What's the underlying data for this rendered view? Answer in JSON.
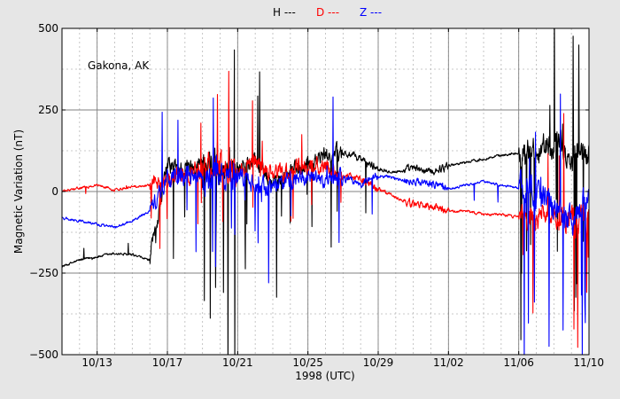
{
  "chart_data": {
    "type": "line",
    "xlabel": "1998 (UTC)",
    "ylabel": "Magnetic Variation (nT)",
    "annotation": "Gakona, AK",
    "ylim": [
      -500,
      500
    ],
    "xlim": [
      "1998-10-11",
      "1998-11-10"
    ],
    "yticks": [
      -500,
      -250,
      0,
      250,
      500
    ],
    "ytick_labels": [
      "−500",
      "−250",
      "0",
      "250",
      "500"
    ],
    "xticks": [
      "1998-10-13",
      "1998-10-17",
      "1998-10-21",
      "1998-10-25",
      "1998-10-29",
      "1998-11-02",
      "1998-11-06",
      "1998-11-10"
    ],
    "xtick_labels": [
      "10/13",
      "10/17",
      "10/21",
      "10/25",
      "10/29",
      "11/02",
      "11/06",
      "11/10"
    ],
    "grid": true,
    "legend_position": "top-center",
    "series": [
      {
        "name": "H ---",
        "color": "#000000",
        "x": [
          "1998-10-11",
          "1998-10-12",
          "1998-10-13",
          "1998-10-14",
          "1998-10-15",
          "1998-10-16",
          "1998-10-17",
          "1998-10-18",
          "1998-10-19",
          "1998-10-20",
          "1998-10-21",
          "1998-10-22",
          "1998-10-23",
          "1998-10-24",
          "1998-10-25",
          "1998-10-26",
          "1998-10-27",
          "1998-10-28",
          "1998-10-29",
          "1998-10-30",
          "1998-10-31",
          "1998-11-01",
          "1998-11-02",
          "1998-11-03",
          "1998-11-04",
          "1998-11-05",
          "1998-11-06",
          "1998-11-07",
          "1998-11-08",
          "1998-11-09",
          "1998-11-10"
        ],
        "y": [
          -230,
          -210,
          -200,
          -190,
          -195,
          -210,
          80,
          70,
          90,
          60,
          80,
          100,
          20,
          60,
          90,
          110,
          120,
          100,
          70,
          60,
          70,
          60,
          80,
          90,
          100,
          110,
          120,
          130,
          150,
          100,
          120
        ]
      },
      {
        "name": "D ---",
        "color": "#ff0000",
        "x": [
          "1998-10-11",
          "1998-10-12",
          "1998-10-13",
          "1998-10-14",
          "1998-10-15",
          "1998-10-16",
          "1998-10-17",
          "1998-10-18",
          "1998-10-19",
          "1998-10-20",
          "1998-10-21",
          "1998-10-22",
          "1998-10-23",
          "1998-10-24",
          "1998-10-25",
          "1998-10-26",
          "1998-10-27",
          "1998-10-28",
          "1998-10-29",
          "1998-10-30",
          "1998-10-31",
          "1998-11-01",
          "1998-11-02",
          "1998-11-03",
          "1998-11-04",
          "1998-11-05",
          "1998-11-06",
          "1998-11-07",
          "1998-11-08",
          "1998-11-09",
          "1998-11-10"
        ],
        "y": [
          0,
          10,
          20,
          5,
          15,
          20,
          40,
          50,
          70,
          80,
          60,
          90,
          50,
          60,
          80,
          70,
          50,
          40,
          10,
          -20,
          -40,
          -50,
          -60,
          -60,
          -70,
          -70,
          -80,
          -90,
          -80,
          -90,
          -80
        ]
      },
      {
        "name": "Z ---",
        "color": "#0000ff",
        "x": [
          "1998-10-11",
          "1998-10-12",
          "1998-10-13",
          "1998-10-14",
          "1998-10-15",
          "1998-10-16",
          "1998-10-17",
          "1998-10-18",
          "1998-10-19",
          "1998-10-20",
          "1998-10-21",
          "1998-10-22",
          "1998-10-23",
          "1998-10-24",
          "1998-10-25",
          "1998-10-26",
          "1998-10-27",
          "1998-10-28",
          "1998-10-29",
          "1998-10-30",
          "1998-10-31",
          "1998-11-01",
          "1998-11-02",
          "1998-11-03",
          "1998-11-04",
          "1998-11-05",
          "1998-11-06",
          "1998-11-07",
          "1998-11-08",
          "1998-11-09",
          "1998-11-10"
        ],
        "y": [
          -80,
          -90,
          -100,
          -110,
          -90,
          -60,
          40,
          50,
          30,
          40,
          60,
          20,
          10,
          40,
          50,
          30,
          40,
          20,
          50,
          40,
          30,
          20,
          10,
          20,
          30,
          20,
          10,
          0,
          -50,
          -100,
          0
        ]
      }
    ]
  }
}
